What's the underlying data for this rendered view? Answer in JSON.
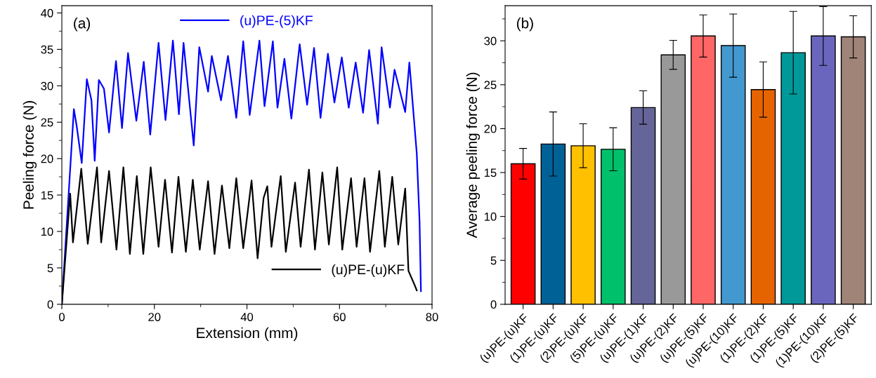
{
  "chart_data": [
    {
      "type": "line",
      "xlabel": "Extension (mm)",
      "ylabel": "Peeling force (N)",
      "xlim": [
        0,
        80
      ],
      "ylim": [
        0,
        41
      ],
      "xticks": [
        0,
        20,
        40,
        60,
        80
      ],
      "yticks": [
        0,
        5,
        10,
        15,
        20,
        25,
        30,
        35,
        40
      ],
      "grid": false,
      "legend": [
        "top",
        "bottom right"
      ],
      "annotations": [
        "(a)"
      ],
      "series": [
        {
          "name": "(u)PE-(5)KF",
          "color": "#0000ff",
          "x": [
            0,
            2.6,
            3.2,
            4.3,
            5.4,
            6.4,
            7.1,
            8.0,
            9.1,
            10.2,
            11.7,
            13.0,
            14.3,
            16.1,
            17.7,
            19.1,
            20.9,
            22.4,
            24.0,
            25.3,
            26.3,
            28.5,
            29.7,
            31.6,
            32.4,
            34.4,
            35.9,
            37.7,
            39.2,
            40.6,
            42.7,
            43.8,
            45.6,
            46.6,
            48.1,
            49.6,
            51.4,
            53.0,
            54.5,
            55.9,
            57.5,
            58.9,
            60.5,
            62.0,
            63.5,
            65.1,
            66.4,
            68.3,
            69.1,
            70.9,
            71.9,
            74.2,
            75.1,
            76.7,
            77.3,
            77.6
          ],
          "values": [
            0,
            26.8,
            24.5,
            19.4,
            30.9,
            28.0,
            19.7,
            30.8,
            29.6,
            23.6,
            33.4,
            24.2,
            34.5,
            25.2,
            33.3,
            23.3,
            35.9,
            25.3,
            36.2,
            26.1,
            35.9,
            21.8,
            35.3,
            29.2,
            34.1,
            28.0,
            34.1,
            25.6,
            36.1,
            26.0,
            36.2,
            27.2,
            36.1,
            27.0,
            33.7,
            25.5,
            35.7,
            27.4,
            35.2,
            25.6,
            34.4,
            27.7,
            33.9,
            27.0,
            33.2,
            26.3,
            34.9,
            24.8,
            35.3,
            27.0,
            32.2,
            26.4,
            33.2,
            20.7,
            11.4,
            1.8
          ]
        },
        {
          "name": "(u)PE-(u)KF",
          "color": "#000000",
          "x": [
            0,
            1.8,
            2.4,
            4.2,
            5.6,
            7.6,
            8.5,
            10.2,
            11.8,
            13.3,
            14.7,
            16.2,
            17.6,
            19.2,
            20.9,
            22.3,
            23.8,
            25.2,
            26.8,
            28.3,
            29.8,
            31.6,
            33.0,
            34.6,
            36.2,
            37.7,
            39.2,
            41.0,
            42.3,
            43.6,
            44.4,
            45.3,
            47.3,
            48.4,
            50.4,
            51.6,
            53.4,
            54.7,
            56.3,
            57.7,
            59.5,
            60.6,
            62.5,
            63.7,
            65.4,
            66.6,
            68.6,
            69.8,
            71.4,
            72.7,
            74.2,
            74.9,
            76.2,
            76.7
          ],
          "values": [
            0,
            15.2,
            8.5,
            18.6,
            8.3,
            18.8,
            8.5,
            18.3,
            7.5,
            18.8,
            6.9,
            17.6,
            6.9,
            18.8,
            7.9,
            17.1,
            7.1,
            17.5,
            7.2,
            17.1,
            7.5,
            16.9,
            6.9,
            16.3,
            7.7,
            17.3,
            7.7,
            17.0,
            6.3,
            14.6,
            16.2,
            7.9,
            17.6,
            7.2,
            16.7,
            7.9,
            18.5,
            7.5,
            18.1,
            8.2,
            18.8,
            7.5,
            17.3,
            7.9,
            17.3,
            7.2,
            18.3,
            7.9,
            17.5,
            8.2,
            15.9,
            4.6,
            2.7,
            1.9
          ]
        }
      ]
    },
    {
      "type": "bar",
      "ylabel": "Average peeling force (N)",
      "ylim": [
        0,
        34
      ],
      "yticks": [
        0,
        5,
        10,
        15,
        20,
        25,
        30
      ],
      "grid": false,
      "annotations": [
        "(b)"
      ],
      "categories": [
        "(u)PE-(u)KF",
        "(1)PE-(u)KF",
        "(2)PE-(u)KF",
        "(5)PE-(u)KF",
        "(u)PE-(1)KF",
        "(u)PE-(2)KF",
        "(u)PE-(5)KF",
        "(u)PE-(10)KF",
        "(1)PE-(2)KF",
        "(1)PE-(5)KF",
        "(1)PE-(10)KF",
        "(2)PE-(5)KF"
      ],
      "values": [
        16.0,
        18.25,
        18.05,
        17.65,
        22.4,
        28.4,
        30.55,
        29.45,
        24.45,
        28.65,
        30.55,
        30.45
      ],
      "errors": [
        1.75,
        3.65,
        2.5,
        2.45,
        1.9,
        1.65,
        2.4,
        3.6,
        3.15,
        4.7,
        3.35,
        2.4
      ],
      "colors": [
        "#ff0000",
        "#006196",
        "#ffc000",
        "#00c06b",
        "#656599",
        "#999999",
        "#ff6666",
        "#4398cf",
        "#e66400",
        "#009999",
        "#6b66bd",
        "#a08478"
      ]
    }
  ]
}
